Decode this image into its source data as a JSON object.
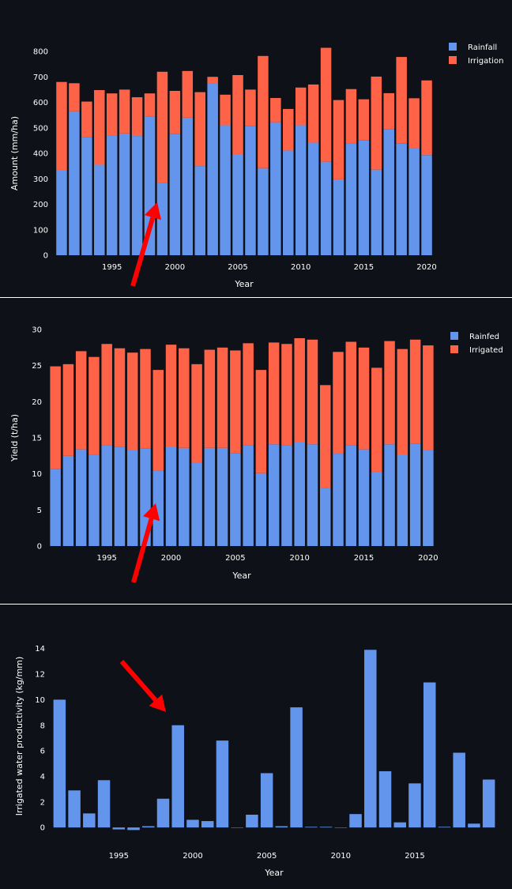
{
  "colors": {
    "background": "#0e1117",
    "blue": "#6495ed",
    "orange": "#ff6347",
    "arrow": "#ff0000",
    "divider": "#ffffff"
  },
  "chart_data": [
    {
      "type": "bar",
      "stacked": true,
      "xlabel": "Year",
      "ylabel": "Amount (mm/ha)",
      "ylim": [
        0,
        800
      ],
      "yticks": [
        0,
        100,
        200,
        300,
        400,
        500,
        600,
        700,
        800
      ],
      "xticks": [
        1995,
        2000,
        2005,
        2010,
        2015,
        2020
      ],
      "legend_position": "top-right",
      "grid": false,
      "categories": [
        1991,
        1992,
        1993,
        1994,
        1995,
        1996,
        1997,
        1998,
        1999,
        2000,
        2001,
        2002,
        2003,
        2004,
        2005,
        2006,
        2007,
        2008,
        2009,
        2010,
        2011,
        2012,
        2013,
        2014,
        2015,
        2016,
        2017,
        2018,
        2019,
        2020
      ],
      "series": [
        {
          "name": "Rainfall",
          "color": "#6495ed",
          "values": [
            335,
            565,
            463,
            355,
            470,
            478,
            468,
            543,
            285,
            475,
            540,
            350,
            673,
            510,
            397,
            508,
            342,
            522,
            411,
            510,
            442,
            367,
            298,
            440,
            452,
            336,
            494,
            438,
            420,
            393
          ]
        },
        {
          "name": "Irrigation",
          "color": "#ff6347",
          "values": [
            345,
            110,
            140,
            293,
            165,
            172,
            152,
            92,
            435,
            170,
            183,
            290,
            27,
            120,
            310,
            142,
            440,
            95,
            163,
            148,
            228,
            447,
            311,
            212,
            160,
            365,
            142,
            340,
            196,
            293
          ]
        }
      ],
      "annotation": {
        "type": "arrow",
        "points_to": 1999
      }
    },
    {
      "type": "bar",
      "stacked": true,
      "xlabel": "Year",
      "ylabel": "Yield (t/ha)",
      "ylim": [
        0,
        30
      ],
      "yticks": [
        0,
        5,
        10,
        15,
        20,
        25,
        30
      ],
      "xticks": [
        1995,
        2000,
        2005,
        2010,
        2015,
        2020
      ],
      "legend_position": "top-right",
      "grid": false,
      "categories": [
        1991,
        1992,
        1993,
        1994,
        1995,
        1996,
        1997,
        1998,
        1999,
        2000,
        2001,
        2002,
        2003,
        2004,
        2005,
        2006,
        2007,
        2008,
        2009,
        2010,
        2011,
        2012,
        2013,
        2014,
        2015,
        2016,
        2017,
        2018,
        2019,
        2020
      ],
      "series": [
        {
          "name": "Rainfed",
          "color": "#6495ed",
          "values": [
            10.7,
            12.5,
            13.4,
            12.6,
            14.0,
            13.7,
            13.3,
            13.5,
            10.5,
            13.8,
            13.6,
            11.6,
            13.6,
            13.6,
            12.9,
            14.0,
            10.1,
            14.1,
            14.0,
            14.4,
            14.1,
            8.0,
            12.8,
            14.0,
            13.4,
            10.3,
            14.1,
            12.7,
            14.2,
            13.3
          ]
        },
        {
          "name": "Irrigated",
          "color": "#ff6347",
          "values": [
            14.2,
            12.7,
            13.6,
            13.6,
            14.0,
            13.7,
            13.5,
            13.8,
            13.9,
            14.1,
            13.8,
            13.6,
            13.6,
            13.9,
            14.2,
            14.1,
            14.3,
            14.1,
            14.0,
            14.4,
            14.5,
            14.3,
            14.1,
            14.3,
            14.1,
            14.4,
            14.3,
            14.6,
            14.4,
            14.5
          ]
        }
      ],
      "annotation": {
        "type": "arrow",
        "points_to": 1999
      }
    },
    {
      "type": "bar",
      "xlabel": "Year",
      "ylabel": "Irrigated water productivity (kg/mm)",
      "ylim": [
        -0.3,
        14.6
      ],
      "yticks": [
        0,
        2,
        4,
        6,
        8,
        10,
        12,
        14
      ],
      "xticks": [
        1995,
        2000,
        2005,
        2010,
        2015
      ],
      "grid": false,
      "categories": [
        1991,
        1992,
        1993,
        1994,
        1995,
        1996,
        1997,
        1998,
        1999,
        2000,
        2001,
        2002,
        2003,
        2004,
        2005,
        2006,
        2007,
        2008,
        2009,
        2010,
        2011,
        2012,
        2013,
        2014,
        2015,
        2016,
        2017,
        2018,
        2019,
        2020
      ],
      "series": [
        {
          "name": "",
          "color": "#6495ed",
          "values": [
            10.0,
            2.9,
            1.1,
            3.7,
            -0.15,
            -0.2,
            0.1,
            2.25,
            8.0,
            0.6,
            0.5,
            6.8,
            0.0,
            1.0,
            4.25,
            0.1,
            9.4,
            0.05,
            0.05,
            0.0,
            1.05,
            13.9,
            4.4,
            0.4,
            3.45,
            11.35,
            0.05,
            5.85,
            0.3,
            3.75
          ]
        }
      ],
      "annotation": {
        "type": "arrow",
        "points_to": 1999
      }
    }
  ]
}
